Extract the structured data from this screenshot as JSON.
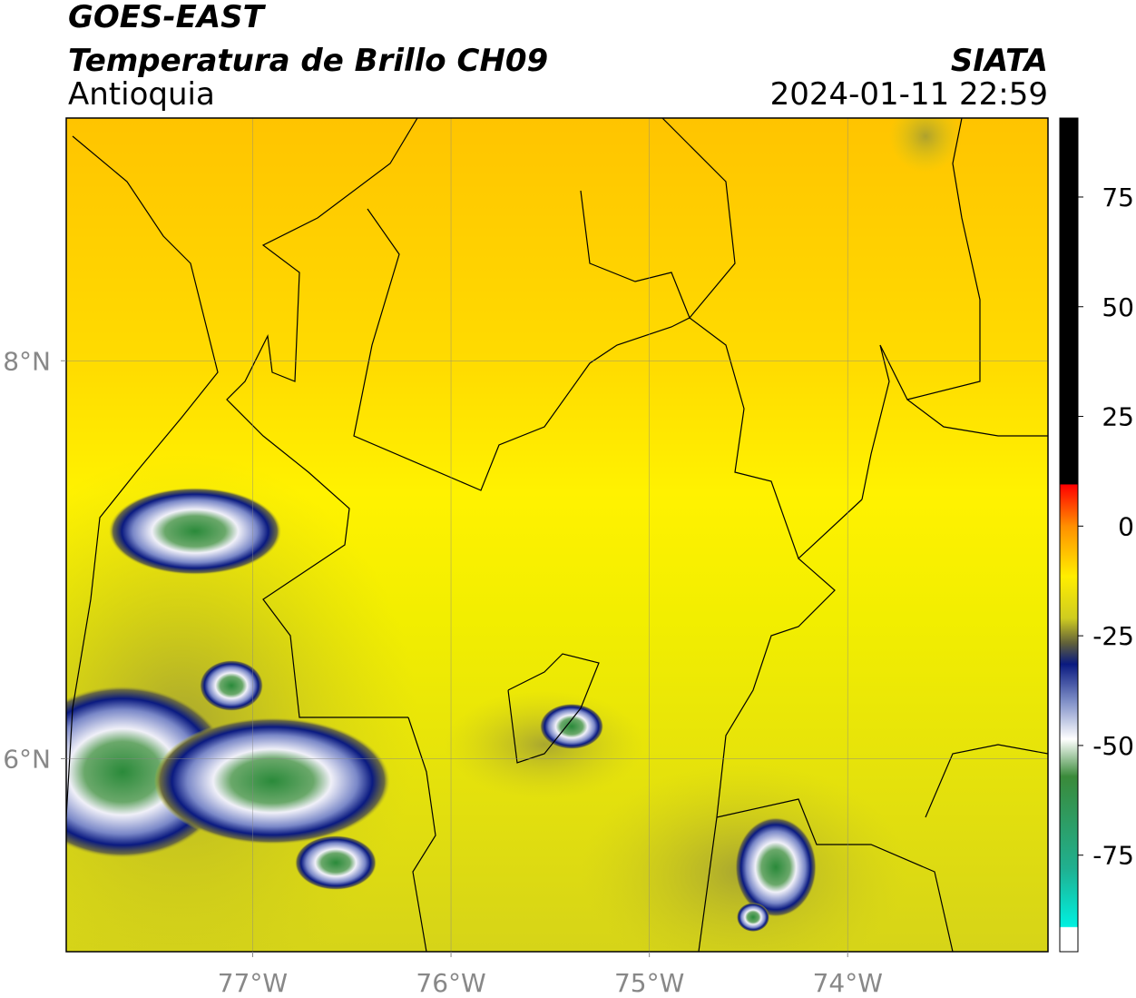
{
  "header": {
    "satellite": "GOES-EAST",
    "product": "Temperatura de Brillo CH09",
    "region": "Antioquia",
    "source": "SIATA",
    "datetime": "2024-01-11 22:59"
  },
  "map": {
    "xlim": [
      -77.94,
      -72.99
    ],
    "ylim": [
      5.03,
      9.22
    ],
    "xticks": [
      {
        "value": -77,
        "label": "77°W"
      },
      {
        "value": -76,
        "label": "76°W"
      },
      {
        "value": -75,
        "label": "75°W"
      },
      {
        "value": -74,
        "label": "74°W"
      }
    ],
    "yticks": [
      {
        "value": 8,
        "label": "8°N"
      },
      {
        "value": 6,
        "label": "6°N"
      }
    ],
    "grid": true
  },
  "colorbar": {
    "lim": [
      -97,
      93
    ],
    "ticks": [
      75,
      50,
      25,
      0,
      -25,
      -50,
      -75
    ]
  }
}
